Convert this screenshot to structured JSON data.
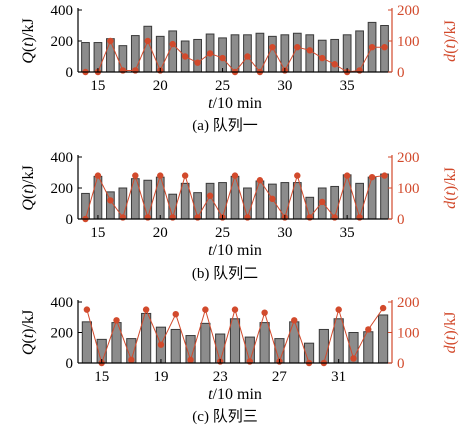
{
  "colors": {
    "bar_fill": "#8c8c8c",
    "bar_stroke": "#3a3a3a",
    "d_series": "#d24a2c",
    "axis": "#000000"
  },
  "chart_data": [
    {
      "type": "bar",
      "caption": "(a) 队列一",
      "xlabel": "t/10 min",
      "ylabel": "Q(t)/kJ",
      "y2label": "d(t)/kJ",
      "x": [
        14,
        15,
        16,
        17,
        18,
        19,
        20,
        21,
        22,
        23,
        24,
        25,
        26,
        27,
        28,
        29,
        30,
        31,
        32,
        33,
        34,
        35,
        36,
        37,
        38
      ],
      "xlim": [
        13.4,
        38.6
      ],
      "xticks": [
        15,
        20,
        25,
        30,
        35
      ],
      "ylim": [
        0,
        400
      ],
      "yticks": [
        0,
        200,
        400
      ],
      "y2lim": [
        0,
        200
      ],
      "y2ticks": [
        0,
        100,
        200
      ],
      "series": [
        {
          "axis": "left",
          "type": "bar",
          "values": [
            190,
            190,
            215,
            170,
            235,
            295,
            230,
            265,
            200,
            210,
            245,
            220,
            240,
            240,
            250,
            230,
            240,
            250,
            240,
            205,
            210,
            240,
            265,
            320,
            300
          ]
        },
        {
          "axis": "right",
          "type": "line",
          "values": [
            0,
            0,
            100,
            5,
            5,
            100,
            5,
            90,
            50,
            30,
            60,
            45,
            0,
            50,
            0,
            80,
            5,
            80,
            70,
            45,
            25,
            0,
            5,
            80,
            80
          ]
        }
      ]
    },
    {
      "type": "bar",
      "caption": "(b) 队列二",
      "xlabel": "t/10 min",
      "ylabel": "Q(t)/kJ",
      "y2label": "d(t)/kJ",
      "x": [
        14,
        15,
        16,
        17,
        18,
        19,
        20,
        21,
        22,
        23,
        24,
        25,
        26,
        27,
        28,
        29,
        30,
        31,
        32,
        33,
        34,
        35,
        36,
        37,
        38
      ],
      "xlim": [
        13.4,
        38.6
      ],
      "xticks": [
        15,
        20,
        25,
        30,
        35
      ],
      "ylim": [
        0,
        400
      ],
      "yticks": [
        0,
        200,
        400
      ],
      "y2lim": [
        0,
        200
      ],
      "y2ticks": [
        0,
        100,
        200
      ],
      "series": [
        {
          "axis": "left",
          "type": "bar",
          "values": [
            165,
            275,
            175,
            200,
            260,
            250,
            270,
            160,
            230,
            170,
            230,
            235,
            275,
            200,
            245,
            225,
            235,
            235,
            140,
            200,
            210,
            285,
            230,
            270,
            290
          ]
        },
        {
          "axis": "right",
          "type": "line",
          "values": [
            0,
            140,
            60,
            5,
            140,
            5,
            140,
            5,
            140,
            5,
            75,
            5,
            140,
            5,
            125,
            65,
            5,
            140,
            5,
            55,
            5,
            140,
            5,
            135,
            140
          ]
        }
      ]
    },
    {
      "type": "bar",
      "caption": "(c) 队列三",
      "xlabel": "t/10 min",
      "ylabel": "Q(t)/kJ",
      "y2label": "d(t)/kJ",
      "x": [
        14,
        15,
        16,
        17,
        18,
        19,
        20,
        21,
        22,
        23,
        24,
        25,
        26,
        27,
        28,
        29,
        30,
        31,
        32,
        33,
        34
      ],
      "xlim": [
        13.4,
        34.6
      ],
      "xticks": [
        15,
        19,
        23,
        27,
        31
      ],
      "ylim": [
        0,
        400
      ],
      "yticks": [
        0,
        200,
        400
      ],
      "y2lim": [
        0,
        200
      ],
      "y2ticks": [
        0,
        100,
        200
      ],
      "series": [
        {
          "axis": "left",
          "type": "bar",
          "values": [
            270,
            155,
            265,
            160,
            325,
            235,
            220,
            180,
            260,
            190,
            290,
            170,
            265,
            160,
            270,
            130,
            220,
            290,
            200,
            205,
            315
          ]
        },
        {
          "axis": "right",
          "type": "line",
          "values": [
            175,
            0,
            140,
            10,
            175,
            60,
            160,
            10,
            175,
            5,
            175,
            5,
            165,
            5,
            140,
            0,
            0,
            175,
            15,
            110,
            180
          ]
        }
      ]
    }
  ]
}
